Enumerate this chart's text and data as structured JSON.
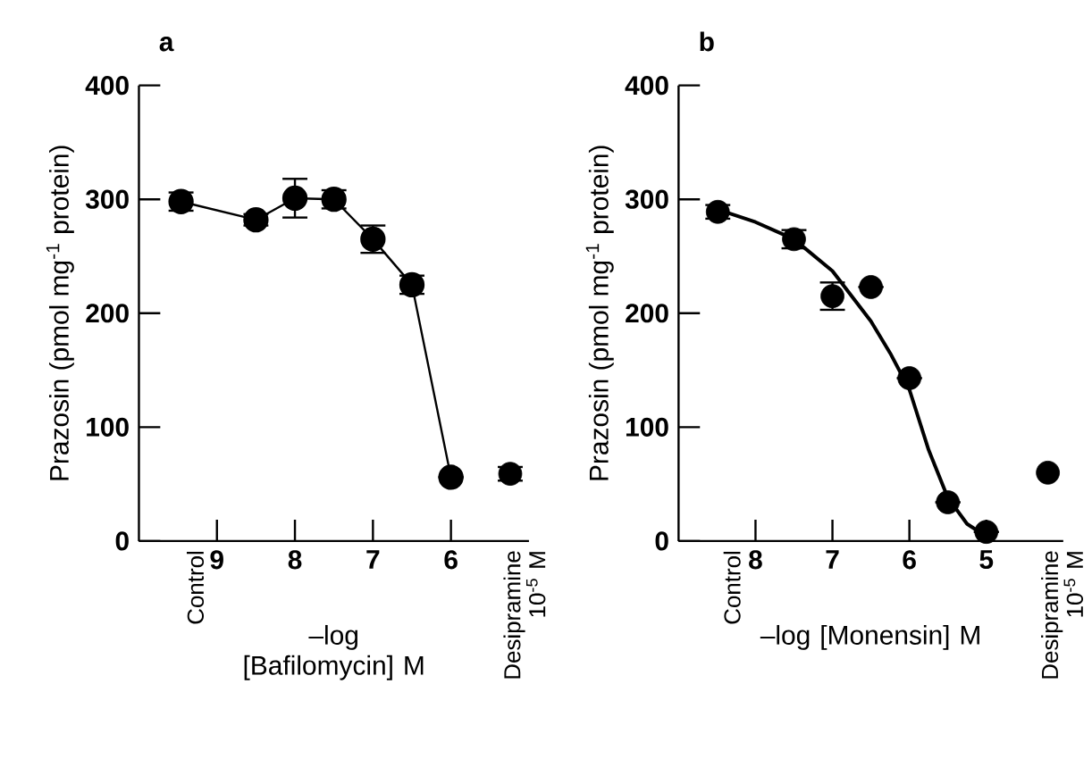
{
  "chart_data": [
    {
      "type": "line",
      "title": "a",
      "xlabel": "–log [Bafilomycin] M",
      "ylabel": "Prazosin (pmol mg$^{-1}$ protein)",
      "xlim": [
        10,
        5
      ],
      "ylim": [
        0,
        400
      ],
      "yticks": [
        0,
        100,
        200,
        300,
        400
      ],
      "xticks": [
        9,
        8,
        7,
        6
      ],
      "annotations": [
        "Control",
        "Desipramine 10$^{-5}$ M"
      ],
      "marker": "circle",
      "series": [
        {
          "color": "#000000",
          "x": [
            9.46,
            8.5,
            8,
            7.5,
            7,
            6.5,
            6
          ],
          "values": [
            298,
            282,
            301,
            300,
            265,
            225,
            56
          ],
          "errors": [
            8,
            5,
            17,
            8,
            12,
            8,
            null
          ]
        },
        {
          "type": "scatter",
          "color": "#000000",
          "x": [
            5.24
          ],
          "values": [
            59
          ],
          "errors": [
            6
          ]
        }
      ]
    },
    {
      "type": "scatter",
      "title": "b",
      "xlabel": "–log [Monensin] M",
      "ylabel": "Prazosin (pmol mg$^{-1}$ protein)",
      "xlim": [
        9,
        4
      ],
      "ylim": [
        0,
        400
      ],
      "yticks": [
        0,
        100,
        200,
        300,
        400
      ],
      "xticks": [
        8,
        7,
        6,
        5
      ],
      "annotations": [
        "Control",
        "Desipramine 10$^{-5}$ M"
      ],
      "marker": "circle",
      "series": [
        {
          "type": "line",
          "marker": "none",
          "color": "#000000",
          "x": [
            8.49,
            8,
            7.5,
            7,
            6.5,
            6.25,
            6,
            5.75,
            5.5,
            5.25,
            5.0
          ],
          "values": [
            291,
            280,
            265,
            237,
            193,
            165,
            133,
            80,
            38,
            15,
            4
          ]
        },
        {
          "color": "#000000",
          "x": [
            8.49,
            7.5,
            7,
            6.5,
            6,
            5.5,
            5
          ],
          "values": [
            289,
            265,
            215,
            223,
            143,
            34,
            8
          ],
          "errors": [
            6,
            8,
            12,
            null,
            null,
            null,
            null
          ]
        },
        {
          "color": "#000000",
          "x": [
            4.2
          ],
          "values": [
            60
          ]
        }
      ]
    }
  ]
}
